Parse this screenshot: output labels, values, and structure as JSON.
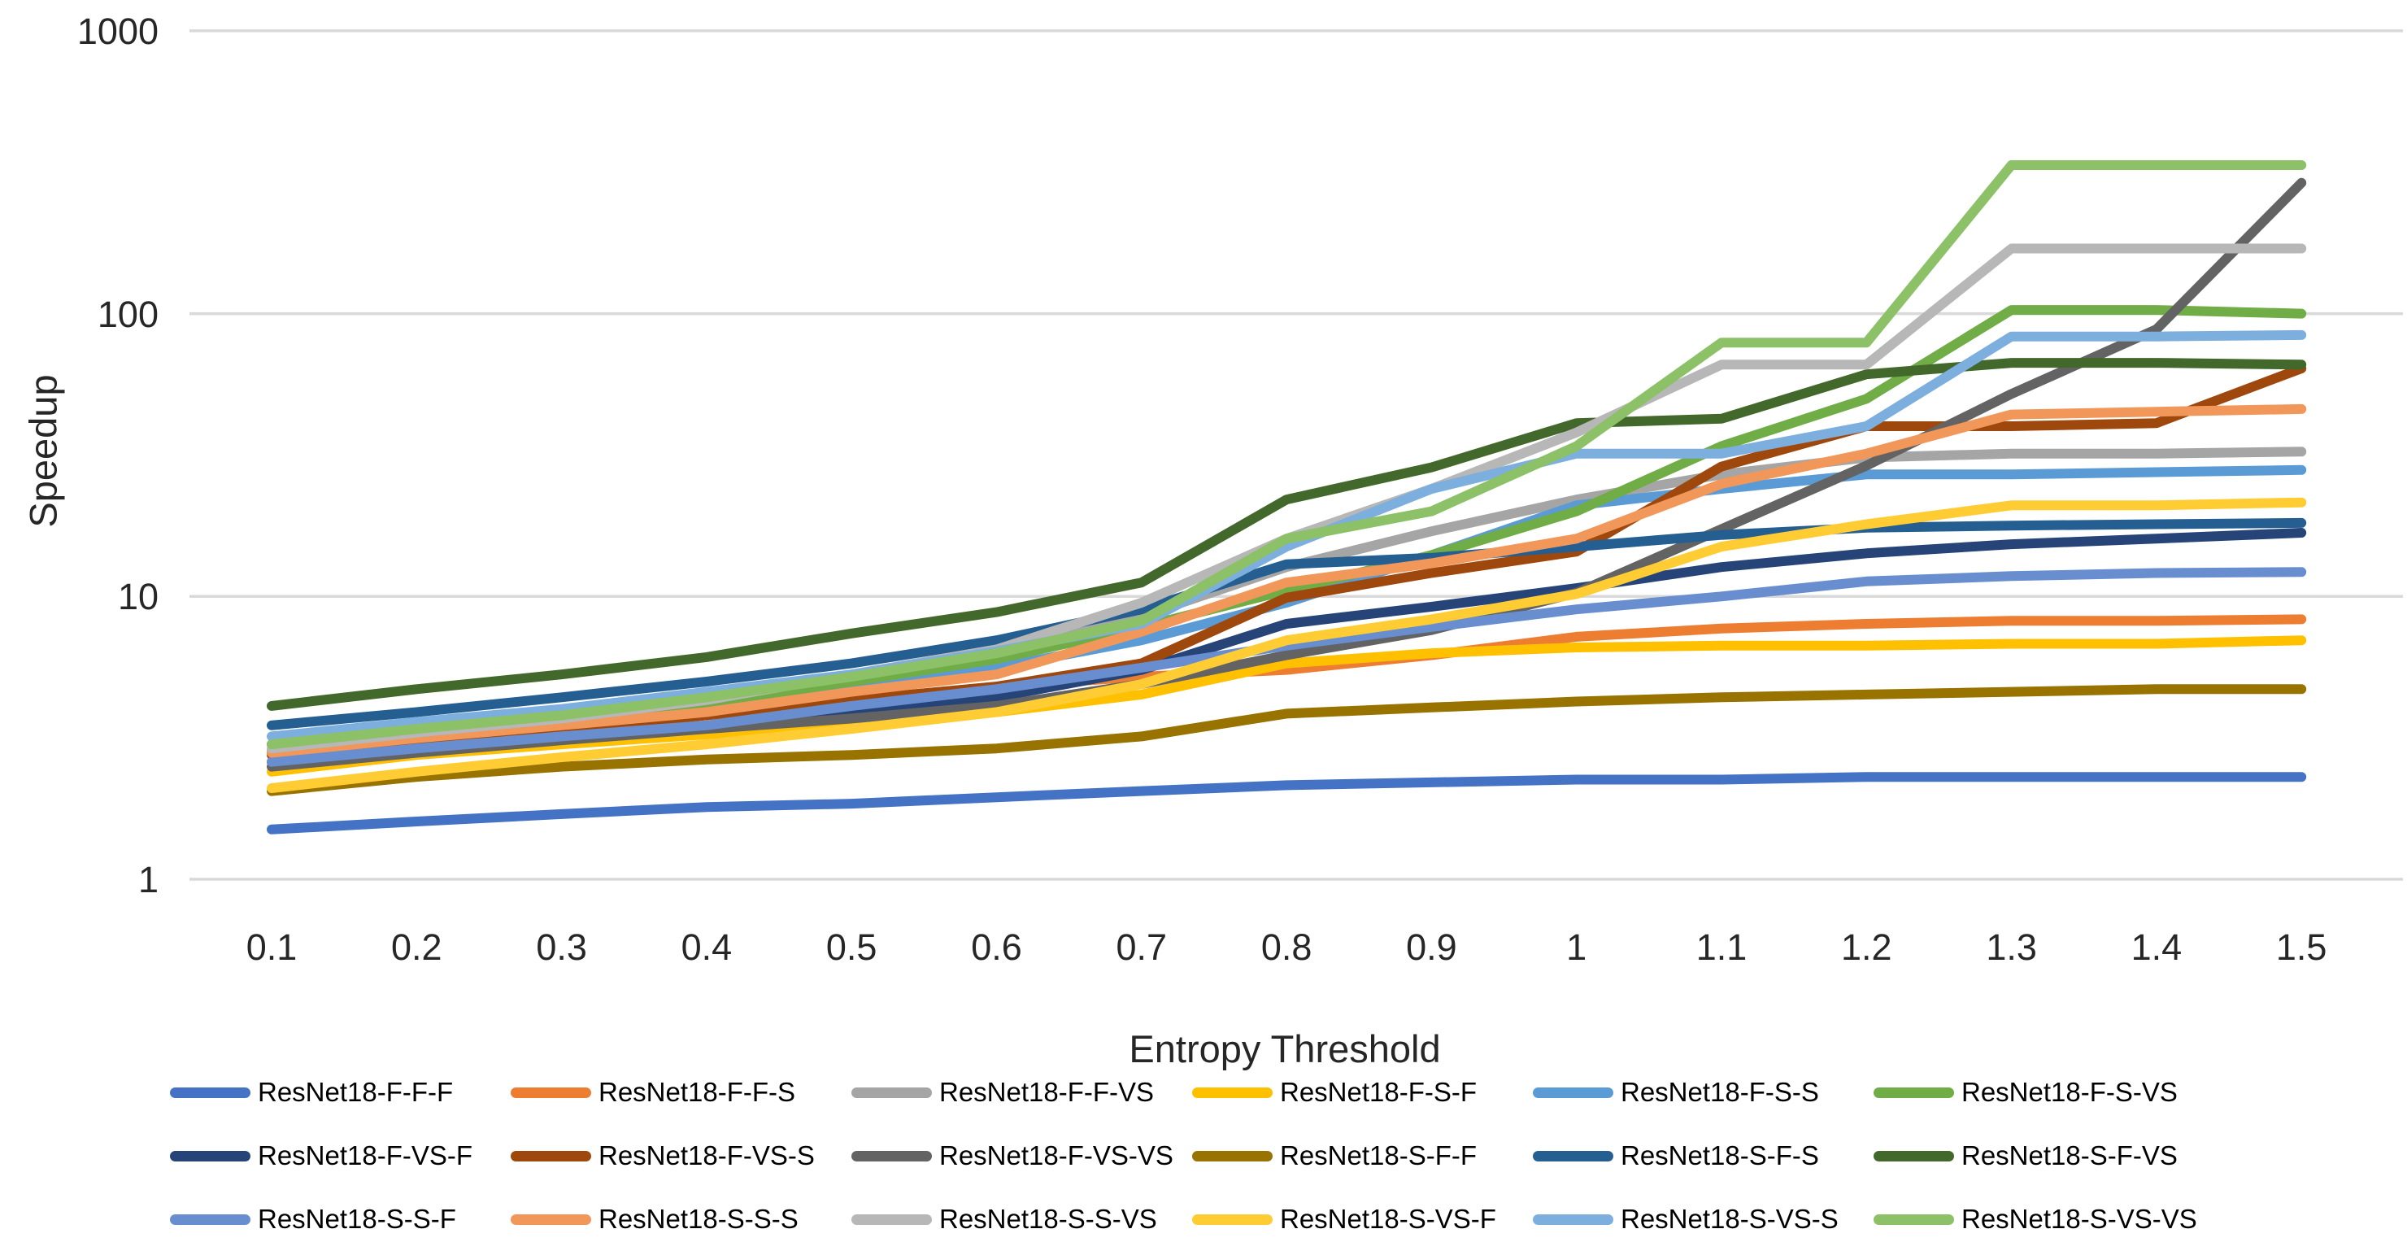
{
  "y_axis": {
    "label": "Speedup",
    "ticks": [
      "1",
      "10",
      "100",
      "1000"
    ]
  },
  "x_axis": {
    "label": "Entropy Threshold",
    "ticks": [
      "0.1",
      "0.2",
      "0.3",
      "0.4",
      "0.5",
      "0.6",
      "0.7",
      "0.8",
      "0.9",
      "1",
      "1.1",
      "1.2",
      "1.3",
      "1.4",
      "1.5"
    ]
  },
  "colors": {
    "gridline": "#D9D9D9",
    "axis_text": "#262626",
    "legend_text": "#000000"
  },
  "chart_data": {
    "type": "line",
    "title": "",
    "xlabel": "Entropy Threshold",
    "ylabel": "Speedup",
    "y_scale": "log10",
    "ylim": [
      1,
      1000
    ],
    "y_ticks": [
      1,
      10,
      100,
      1000
    ],
    "grid": "horizontal",
    "legend_position": "bottom",
    "x": [
      0.1,
      0.2,
      0.3,
      0.4,
      0.5,
      0.6,
      0.7,
      0.8,
      0.9,
      1,
      1.1,
      1.2,
      1.3,
      1.4,
      1.5
    ],
    "series": [
      {
        "name": "ResNet18-F-F-F",
        "color": "#4472C4",
        "values": [
          1.5,
          1.6,
          1.7,
          1.8,
          1.85,
          1.95,
          2.05,
          2.15,
          2.2,
          2.25,
          2.25,
          2.3,
          2.3,
          2.3,
          2.3
        ]
      },
      {
        "name": "ResNet18-F-F-S",
        "color": "#ED7D31",
        "values": [
          2.8,
          3.1,
          3.4,
          3.8,
          4.3,
          4.8,
          5.2,
          5.5,
          6.2,
          7.2,
          7.7,
          8.0,
          8.2,
          8.2,
          8.3
        ]
      },
      {
        "name": "ResNet18-F-F-VS",
        "color": "#A5A5A5",
        "values": [
          2.85,
          3.2,
          3.6,
          4.3,
          5.2,
          6.3,
          8.5,
          12.7,
          17,
          22,
          27,
          31,
          32,
          32,
          32.5
        ]
      },
      {
        "name": "ResNet18-F-S-F",
        "color": "#FFC000",
        "values": [
          2.4,
          2.75,
          3.0,
          3.25,
          3.5,
          3.9,
          4.5,
          5.8,
          6.3,
          6.6,
          6.7,
          6.7,
          6.8,
          6.8,
          7.0
        ]
      },
      {
        "name": "ResNet18-F-S-S",
        "color": "#5B9BD5",
        "values": [
          3.0,
          3.4,
          3.8,
          4.3,
          4.9,
          5.6,
          7.0,
          9.5,
          14,
          21,
          24,
          27,
          27,
          27.5,
          28
        ]
      },
      {
        "name": "ResNet18-F-S-VS",
        "color": "#70AD47",
        "values": [
          3.0,
          3.3,
          3.7,
          4.2,
          5.0,
          6.0,
          7.8,
          10.5,
          14,
          20,
          34,
          50,
          103,
          103,
          100
        ]
      },
      {
        "name": "ResNet18-F-VS-F",
        "color": "#264478",
        "values": [
          2.6,
          2.9,
          3.2,
          3.5,
          3.9,
          4.4,
          5.5,
          8.0,
          9.2,
          10.7,
          12.7,
          14.2,
          15.3,
          16,
          16.8
        ]
      },
      {
        "name": "ResNet18-F-VS-S",
        "color": "#9E480E",
        "values": [
          2.75,
          3.1,
          3.4,
          3.8,
          4.3,
          4.8,
          5.8,
          9.9,
          12.1,
          14.4,
          28.8,
          40,
          40,
          41,
          64
        ]
      },
      {
        "name": "ResNet18-F-VS-VS",
        "color": "#636363",
        "values": [
          2.5,
          2.8,
          3.1,
          3.4,
          3.7,
          4.1,
          4.9,
          6.2,
          7.6,
          10.3,
          17.3,
          29,
          52,
          88,
          290
        ]
      },
      {
        "name": "ResNet18-S-F-F",
        "color": "#997300",
        "values": [
          2.05,
          2.3,
          2.5,
          2.65,
          2.75,
          2.9,
          3.2,
          3.85,
          4.05,
          4.25,
          4.4,
          4.5,
          4.6,
          4.7,
          4.7
        ]
      },
      {
        "name": "ResNet18-S-F-S",
        "color": "#255E91",
        "values": [
          3.5,
          3.9,
          4.4,
          5.0,
          5.8,
          7.0,
          9.0,
          13.0,
          13.7,
          15.0,
          16.5,
          17.5,
          17.8,
          18,
          18.2
        ]
      },
      {
        "name": "ResNet18-S-F-VS",
        "color": "#43682B",
        "values": [
          4.1,
          4.7,
          5.3,
          6.1,
          7.4,
          8.8,
          11.2,
          22,
          28.6,
          41,
          42.5,
          61,
          67,
          67,
          66
        ]
      },
      {
        "name": "ResNet18-S-S-F",
        "color": "#698ED0",
        "values": [
          2.6,
          2.9,
          3.2,
          3.5,
          4.1,
          4.7,
          5.6,
          6.7,
          7.8,
          9.0,
          10.0,
          11.3,
          11.8,
          12.1,
          12.2
        ]
      },
      {
        "name": "ResNet18-S-S-S",
        "color": "#F1975A",
        "values": [
          2.8,
          3.15,
          3.5,
          3.9,
          4.6,
          5.3,
          7.5,
          11.2,
          13.1,
          16,
          25,
          32,
          44,
          45,
          46
        ]
      },
      {
        "name": "ResNet18-S-S-VS",
        "color": "#B7B7B7",
        "values": [
          2.9,
          3.3,
          3.7,
          4.3,
          5.3,
          6.5,
          9.5,
          16,
          24,
          38,
          66,
          66,
          170,
          170,
          170
        ]
      },
      {
        "name": "ResNet18-S-VS-F",
        "color": "#FFCD33",
        "values": [
          2.1,
          2.4,
          2.7,
          3.0,
          3.4,
          3.9,
          4.9,
          7.0,
          8.3,
          10.2,
          15,
          18,
          21,
          21,
          21.5
        ]
      },
      {
        "name": "ResNet18-S-VS-S",
        "color": "#7CAFDD",
        "values": [
          3.2,
          3.6,
          4.0,
          4.6,
          5.3,
          6.4,
          8.0,
          15,
          24,
          32,
          32,
          40,
          83,
          83,
          84
        ]
      },
      {
        "name": "ResNet18-S-VS-VS",
        "color": "#8CC168",
        "values": [
          3.0,
          3.4,
          3.8,
          4.4,
          5.2,
          6.3,
          8.2,
          16,
          20,
          34,
          79,
          79,
          335,
          335,
          335
        ]
      }
    ]
  }
}
